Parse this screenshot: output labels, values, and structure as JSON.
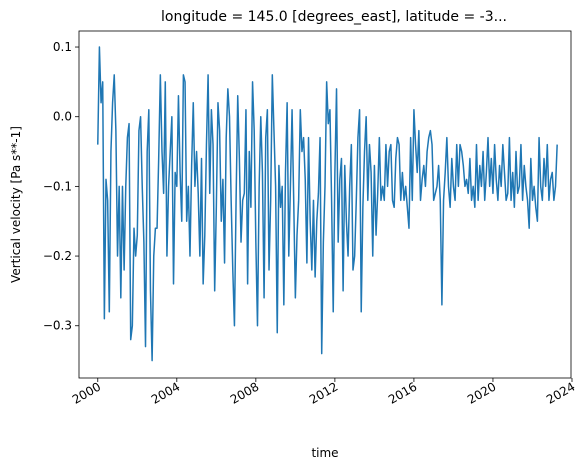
{
  "chart_data": {
    "type": "line",
    "title": "longitude = 145.0 [degrees_east], latitude = -3...",
    "xlabel": "time",
    "ylabel": "Vertical velocity [Pa s**-1]",
    "xlim": [
      1999.05,
      2023.95
    ],
    "ylim": [
      -0.375,
      0.123
    ],
    "xticks": [
      2000,
      2004,
      2008,
      2012,
      2016,
      2020,
      2024
    ],
    "xtick_labels": [
      "2000",
      "2004",
      "2008",
      "2012",
      "2016",
      "2020",
      "2024"
    ],
    "yticks": [
      0.1,
      0.0,
      -0.1,
      -0.2,
      -0.3
    ],
    "ytick_labels": [
      "0.1",
      "0.0",
      "−0.1",
      "−0.2",
      "−0.3"
    ],
    "grid": false,
    "line_color": "#1f77b4",
    "series": [
      {
        "x_start": 2000.0,
        "x_step": 0.0833333,
        "values": [
          -0.04,
          0.1,
          0.02,
          0.05,
          -0.29,
          -0.09,
          -0.12,
          -0.28,
          -0.05,
          0.02,
          0.06,
          -0.02,
          -0.2,
          -0.1,
          -0.26,
          -0.1,
          -0.22,
          -0.1,
          -0.03,
          -0.01,
          -0.32,
          -0.3,
          -0.16,
          -0.2,
          -0.17,
          -0.02,
          0.0,
          -0.1,
          -0.18,
          -0.33,
          -0.05,
          0.01,
          -0.25,
          -0.35,
          -0.2,
          -0.16,
          -0.16,
          -0.06,
          0.06,
          -0.05,
          -0.11,
          0.05,
          -0.2,
          -0.1,
          -0.05,
          0.0,
          -0.24,
          -0.08,
          -0.1,
          0.03,
          -0.08,
          -0.15,
          0.06,
          0.05,
          -0.15,
          -0.1,
          -0.2,
          -0.07,
          0.02,
          -0.1,
          -0.05,
          -0.11,
          -0.2,
          -0.06,
          -0.24,
          -0.17,
          -0.04,
          0.06,
          -0.11,
          0.01,
          -0.04,
          -0.25,
          -0.13,
          0.02,
          -0.02,
          -0.15,
          -0.09,
          -0.21,
          -0.03,
          0.04,
          0.0,
          -0.12,
          -0.22,
          -0.3,
          -0.12,
          0.03,
          -0.06,
          -0.18,
          -0.12,
          -0.11,
          0.01,
          -0.24,
          -0.05,
          -0.13,
          0.05,
          -0.02,
          -0.18,
          -0.3,
          -0.1,
          0.0,
          -0.08,
          -0.26,
          -0.03,
          0.01,
          -0.22,
          -0.12,
          0.06,
          -0.02,
          -0.1,
          -0.31,
          -0.07,
          -0.13,
          -0.1,
          -0.27,
          -0.08,
          0.02,
          -0.2,
          -0.1,
          0.01,
          -0.12,
          -0.26,
          -0.17,
          -0.12,
          0.01,
          -0.05,
          -0.03,
          -0.09,
          -0.21,
          -0.03,
          -0.15,
          -0.22,
          -0.12,
          -0.23,
          -0.15,
          -0.11,
          -0.03,
          -0.34,
          -0.18,
          -0.1,
          0.05,
          -0.01,
          0.01,
          -0.12,
          -0.28,
          -0.08,
          0.04,
          -0.18,
          -0.09,
          -0.06,
          -0.25,
          -0.07,
          -0.15,
          -0.2,
          -0.1,
          -0.04,
          -0.22,
          -0.2,
          -0.12,
          -0.03,
          0.01,
          -0.28,
          -0.13,
          -0.05,
          0.0,
          -0.12,
          -0.04,
          -0.08,
          -0.2,
          -0.07,
          -0.17,
          -0.11,
          -0.03,
          -0.12,
          -0.1,
          -0.12,
          -0.04,
          -0.1,
          -0.05,
          -0.04,
          -0.12,
          -0.13,
          -0.06,
          -0.03,
          -0.04,
          -0.12,
          -0.08,
          -0.12,
          -0.1,
          -0.13,
          -0.16,
          -0.03,
          -0.12,
          0.01,
          -0.04,
          -0.08,
          -0.02,
          -0.12,
          -0.09,
          -0.07,
          -0.1,
          -0.05,
          -0.03,
          -0.02,
          -0.04,
          -0.12,
          -0.11,
          -0.1,
          -0.07,
          -0.12,
          -0.27,
          -0.12,
          -0.08,
          -0.03,
          -0.1,
          -0.13,
          -0.06,
          -0.1,
          -0.12,
          -0.04,
          -0.1,
          -0.04,
          -0.05,
          -0.07,
          -0.1,
          -0.09,
          -0.11,
          -0.06,
          -0.12,
          -0.1,
          -0.13,
          -0.04,
          -0.12,
          -0.07,
          -0.1,
          -0.05,
          -0.12,
          -0.08,
          -0.03,
          -0.1,
          -0.06,
          -0.11,
          -0.04,
          -0.09,
          -0.12,
          -0.07,
          -0.1,
          -0.04,
          -0.08,
          -0.12,
          -0.11,
          -0.03,
          -0.12,
          -0.08,
          -0.13,
          -0.05,
          -0.11,
          -0.1,
          -0.04,
          -0.12,
          -0.07,
          -0.1,
          -0.12,
          -0.16,
          -0.06,
          -0.12,
          -0.1,
          -0.13,
          -0.15,
          -0.03,
          -0.1,
          -0.12,
          -0.06,
          -0.1,
          -0.04,
          -0.12,
          -0.09,
          -0.08,
          -0.12,
          -0.1,
          -0.04
        ]
      }
    ]
  }
}
